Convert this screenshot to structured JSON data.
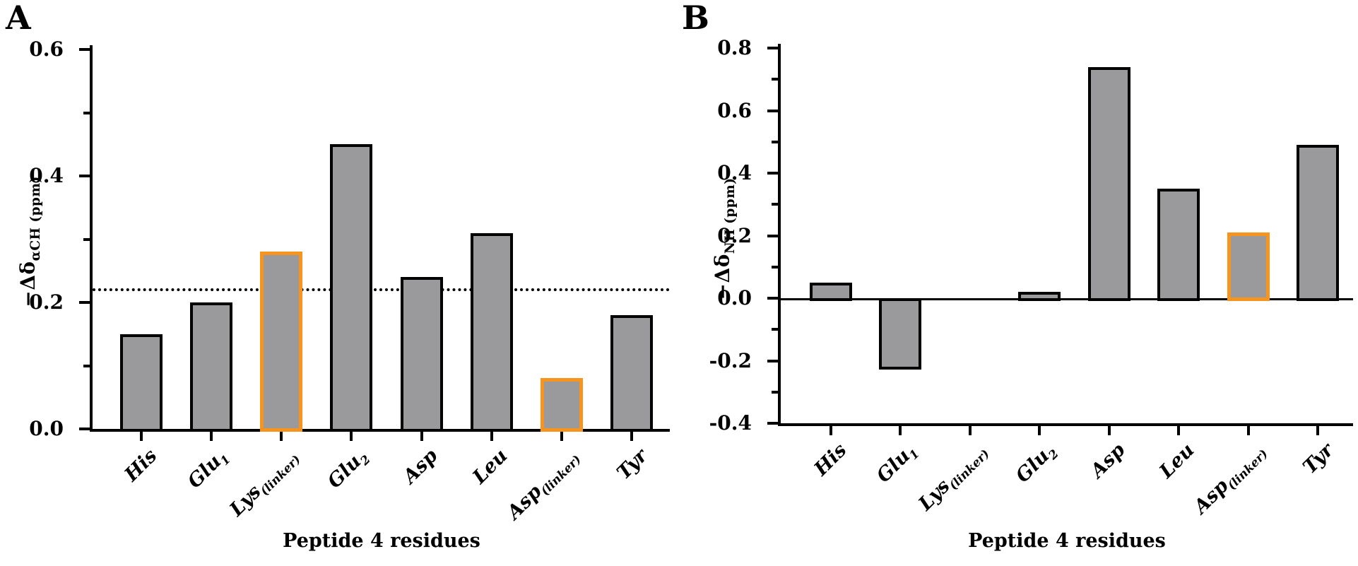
{
  "figure": {
    "panel_a_label": "A",
    "panel_b_label": "B"
  },
  "colors": {
    "bar_fill": "#9A999B",
    "bar_outline": "#000000",
    "accent_orange": "#F7941E",
    "axis": "#000000"
  },
  "chart_data": [
    {
      "type": "bar",
      "panel_label": "A",
      "title": "",
      "xlabel": "Peptide 4 residues",
      "ylabel": "−Δδ αCH (ppm)",
      "ylabel_prefix": "−Δδ",
      "ylabel_sub": "αCH (ppm)",
      "categories": [
        "His",
        "Glu1",
        "Lys(linker)",
        "Glu2",
        "Asp",
        "Leu",
        "Asp(linker)",
        "Tyr"
      ],
      "category_parts": [
        {
          "main": "His",
          "sub": ""
        },
        {
          "main": "Glu",
          "sub": "1"
        },
        {
          "main": "Lys",
          "sub": "(linker)"
        },
        {
          "main": "Glu",
          "sub": "2"
        },
        {
          "main": "Asp",
          "sub": ""
        },
        {
          "main": "Leu",
          "sub": ""
        },
        {
          "main": "Asp",
          "sub": "(linker)"
        },
        {
          "main": "Tyr",
          "sub": ""
        }
      ],
      "values": [
        0.15,
        0.2,
        0.28,
        0.45,
        0.24,
        0.31,
        0.08,
        0.18
      ],
      "bar_outlines": [
        "black",
        "black",
        "orange",
        "black",
        "black",
        "black",
        "orange",
        "black"
      ],
      "ylim": [
        0.0,
        0.6
      ],
      "ytick_major_step": 0.2,
      "ytick_minor_step": 0.1,
      "ytick_labels": [
        "0.0",
        "0.2",
        "0.4",
        "0.6"
      ],
      "threshold_line": 0.22,
      "threshold_style": "dotted",
      "grid": false,
      "legend": null
    },
    {
      "type": "bar",
      "panel_label": "B",
      "title": "",
      "xlabel": "Peptide 4 residues",
      "ylabel": "−Δδ NH (ppm)",
      "ylabel_prefix": "−Δδ",
      "ylabel_sub": "NH (ppm)",
      "categories": [
        "His",
        "Glu1",
        "Lys(linker)",
        "Glu2",
        "Asp",
        "Leu",
        "Asp(linker)",
        "Tyr"
      ],
      "category_parts": [
        {
          "main": "His",
          "sub": ""
        },
        {
          "main": "Glu",
          "sub": "1"
        },
        {
          "main": "Lys",
          "sub": "(linker)"
        },
        {
          "main": "Glu",
          "sub": "2"
        },
        {
          "main": "Asp",
          "sub": ""
        },
        {
          "main": "Leu",
          "sub": ""
        },
        {
          "main": "Asp",
          "sub": "(linker)"
        },
        {
          "main": "Tyr",
          "sub": ""
        }
      ],
      "values": [
        0.05,
        -0.22,
        0.0,
        0.02,
        0.74,
        0.35,
        0.21,
        0.49
      ],
      "bar_outlines": [
        "black",
        "black",
        "black",
        "black",
        "black",
        "black",
        "orange",
        "black"
      ],
      "ylim": [
        -0.4,
        0.8
      ],
      "ytick_major_step": 0.2,
      "ytick_minor_step": 0.1,
      "ytick_labels": [
        "-0.4",
        "-0.2",
        "0.0",
        "0.2",
        "0.4",
        "0.6",
        "0.8"
      ],
      "threshold_line": null,
      "threshold_style": null,
      "grid": false,
      "legend": null
    }
  ]
}
